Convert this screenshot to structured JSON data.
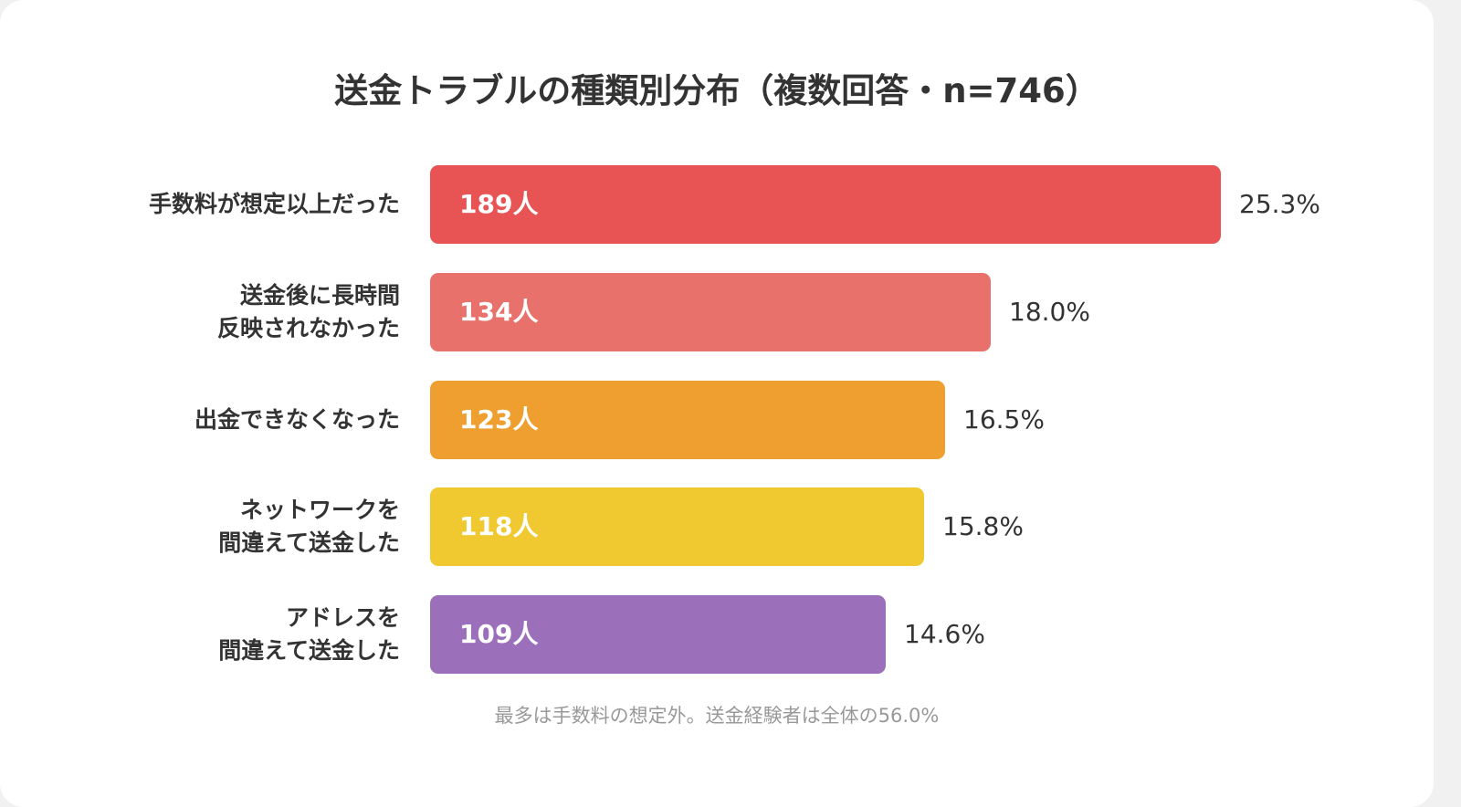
{
  "chart_data": {
    "type": "bar",
    "orientation": "horizontal",
    "title": "送金トラブルの種類別分布（複数回答・n=746）",
    "categories": [
      [
        "手数料が想定以上だった"
      ],
      [
        "送金後に長時間",
        "反映されなかった"
      ],
      [
        "出金できなくなった"
      ],
      [
        "ネットワークを",
        "間違えて送金した"
      ],
      [
        "アドレスを",
        "間違えて送金した"
      ]
    ],
    "values": [
      189,
      134,
      123,
      118,
      109
    ],
    "value_labels": [
      "189人",
      "134人",
      "123人",
      "118人",
      "109人"
    ],
    "percent_labels": [
      "25.3%",
      "18.0%",
      "16.5%",
      "15.8%",
      "14.6%"
    ],
    "percent_values": [
      25.3,
      18.0,
      16.5,
      15.8,
      14.6
    ],
    "colors": [
      "#e85353",
      "#e8716b",
      "#ef9f30",
      "#efc92f",
      "#9b6fba"
    ],
    "note": "最多は手数料の想定外。送金経験者は全体の56.0%",
    "grid": false,
    "legend": "none"
  }
}
